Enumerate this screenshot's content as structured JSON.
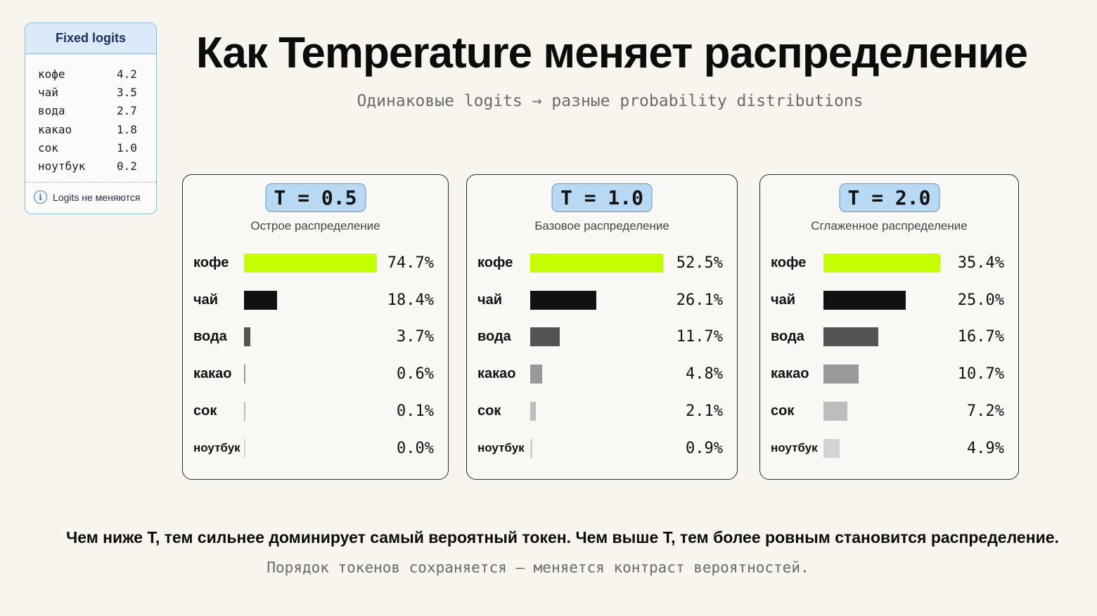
{
  "page": {
    "title": "Как Temperature меняет распределение",
    "subtitle": "Одинаковые logits → разные probability distributions",
    "bottom_main": "Чем ниже T, тем сильнее доминирует самый вероятный токен. Чем выше T, тем более ровным становится распределение.",
    "bottom_sub": "Порядок токенов сохраняется — меняется контраст вероятностей."
  },
  "logits_panel": {
    "title": "Fixed logits",
    "note": "Logits не меняются",
    "rows": [
      {
        "token": "кофе",
        "value": "4.2"
      },
      {
        "token": "чай",
        "value": "3.5"
      },
      {
        "token": "вода",
        "value": "2.7"
      },
      {
        "token": "какао",
        "value": "1.8"
      },
      {
        "token": "сок",
        "value": "1.0"
      },
      {
        "token": "ноутбук",
        "value": "0.2"
      }
    ]
  },
  "colors": {
    "top_bar": "#c4ff00",
    "rank_colors": [
      "#c4ff00",
      "#111111",
      "#545454",
      "#999999",
      "#bdbdbd",
      "#d3d3d3"
    ],
    "badge": "#b8d9f3"
  },
  "chart_data": [
    {
      "type": "bar",
      "orientation": "horizontal",
      "title": "T = 0.5",
      "subtitle": "Острое распределение",
      "categories": [
        "кофе",
        "чай",
        "вода",
        "какао",
        "сок",
        "ноутбук"
      ],
      "values": [
        74.7,
        18.4,
        3.7,
        0.6,
        0.1,
        0.0
      ],
      "labels": [
        "74.7%",
        "18.4%",
        "3.7%",
        "0.6%",
        "0.1%",
        "0.0%"
      ]
    },
    {
      "type": "bar",
      "orientation": "horizontal",
      "title": "T = 1.0",
      "subtitle": "Базовое распределение",
      "categories": [
        "кофе",
        "чай",
        "вода",
        "какао",
        "сок",
        "ноутбук"
      ],
      "values": [
        52.5,
        26.1,
        11.7,
        4.8,
        2.1,
        0.9
      ],
      "labels": [
        "52.5%",
        "26.1%",
        "11.7%",
        "4.8%",
        "2.1%",
        "0.9%"
      ]
    },
    {
      "type": "bar",
      "orientation": "horizontal",
      "title": "T = 2.0",
      "subtitle": "Сглаженное распределение",
      "categories": [
        "кофе",
        "чай",
        "вода",
        "какао",
        "сок",
        "ноутбук"
      ],
      "values": [
        35.4,
        25.0,
        16.7,
        10.7,
        7.2,
        4.9
      ],
      "labels": [
        "35.4%",
        "25.0%",
        "16.7%",
        "10.7%",
        "7.2%",
        "4.9%"
      ]
    }
  ]
}
